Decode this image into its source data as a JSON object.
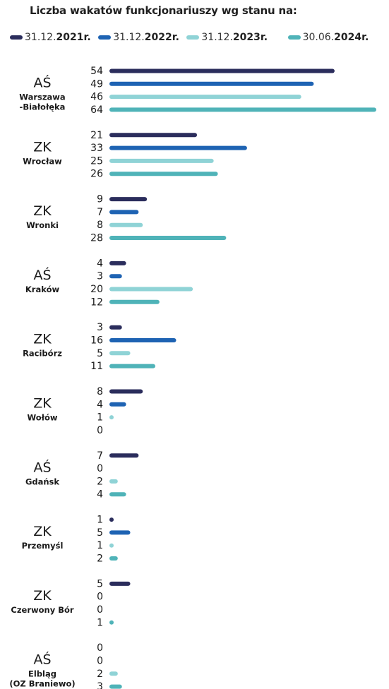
{
  "title": "Liczba wakatów funkcjonariuszy wg stanu na:",
  "legend": [
    {
      "prefix": "31.12.",
      "year": "2021",
      "suffix": " r.",
      "color": "#2b2d5c"
    },
    {
      "prefix": "31.12.",
      "year": "2022",
      "suffix": " r.",
      "color": "#1e63b3"
    },
    {
      "prefix": "31.12.",
      "year": "2023",
      "suffix": " r.",
      "color": "#8fd3d6"
    },
    {
      "prefix": "30.06.",
      "year": "2024",
      "suffix": " r.",
      "color": "#4fb3b8"
    }
  ],
  "chart_data": {
    "type": "bar",
    "orientation": "horizontal",
    "title": "Liczba wakatów funkcjonariuszy wg stanu na:",
    "xlim": [
      0,
      64
    ],
    "grid": false,
    "legend_position": "top",
    "categories": [
      {
        "type": "AŚ",
        "name": "Warszawa\n-Białołęka"
      },
      {
        "type": "ZK",
        "name": "Wrocław"
      },
      {
        "type": "ZK",
        "name": "Wronki"
      },
      {
        "type": "AŚ",
        "name": "Kraków"
      },
      {
        "type": "ZK",
        "name": "Racibórz"
      },
      {
        "type": "ZK",
        "name": "Wołów"
      },
      {
        "type": "AŚ",
        "name": "Gdańsk"
      },
      {
        "type": "ZK",
        "name": "Przemyśl"
      },
      {
        "type": "ZK",
        "name": "Czerwony Bór"
      },
      {
        "type": "AŚ",
        "name": "Elbląg\n(OZ Braniewo)"
      }
    ],
    "series": [
      {
        "name": "31.12.2021 r.",
        "color": "#2b2d5c",
        "values": [
          54,
          21,
          9,
          4,
          3,
          8,
          7,
          1,
          5,
          0
        ]
      },
      {
        "name": "31.12.2022 r.",
        "color": "#1e63b3",
        "values": [
          49,
          33,
          7,
          3,
          16,
          4,
          0,
          5,
          0,
          0
        ]
      },
      {
        "name": "31.12.2023 r.",
        "color": "#8fd3d6",
        "values": [
          46,
          25,
          8,
          20,
          5,
          1,
          2,
          1,
          0,
          2
        ]
      },
      {
        "name": "30.06.2024 r.",
        "color": "#4fb3b8",
        "values": [
          64,
          26,
          28,
          12,
          11,
          0,
          4,
          2,
          1,
          3
        ]
      }
    ]
  }
}
